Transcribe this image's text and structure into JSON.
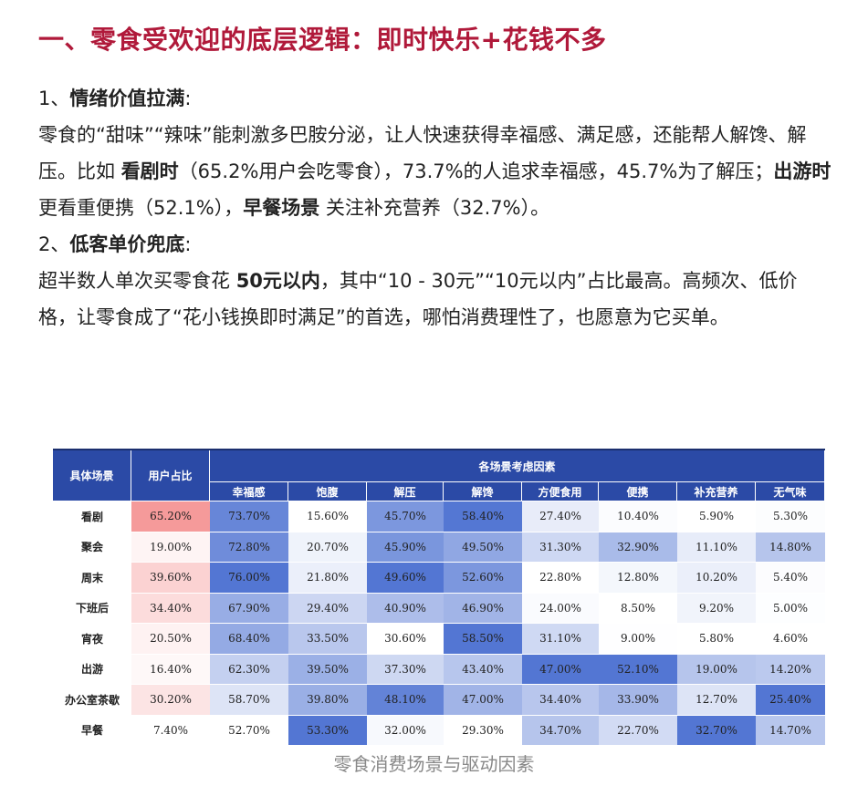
{
  "title": "一、零食受欢迎的底层逻辑：即时快乐+花钱不多",
  "sections": [
    {
      "heading_prefix": "1、",
      "heading": "情绪价值拉满",
      "heading_suffix": ":",
      "parts": [
        {
          "t": "零食的“甜味”“辣味”能刺激多巴胺分泌，让人快速获得幸福感、满足感，还能帮人解馋、解压。比如 ",
          "b": false
        },
        {
          "t": "看剧时",
          "b": true
        },
        {
          "t": "（65.2%用户会吃零食），73.7%的人追求幸福感，45.7%为了解压；",
          "b": false
        },
        {
          "t": "出游时",
          "b": true
        },
        {
          "t": " 更看重便携（52.1%），",
          "b": false
        },
        {
          "t": "早餐场景",
          "b": true
        },
        {
          "t": " 关注补充营养（32.7%）。",
          "b": false
        }
      ]
    },
    {
      "heading_prefix": "2、",
      "heading": "低客单价兜底",
      "heading_suffix": ":",
      "parts": [
        {
          "t": "超半数人单次买零食花 ",
          "b": false
        },
        {
          "t": "50元以内",
          "b": true
        },
        {
          "t": "，其中“10 - 30元”“10元以内”占比最高。高频次、低价格，让零食成了“花小钱换即时满足”的首选，哪怕消费理性了，也愿意为它买单。",
          "b": false
        }
      ]
    }
  ],
  "table": {
    "header_scene": "具体场景",
    "header_share": "用户占比",
    "header_group": "各场景考虑因素",
    "factors": [
      "幸福感",
      "饱腹",
      "解压",
      "解馋",
      "方便食用",
      "便携",
      "补充营养",
      "无气味"
    ],
    "rows": [
      {
        "scene": "看剧",
        "share": "65.20%",
        "values": [
          "73.70%",
          "15.60%",
          "45.70%",
          "58.40%",
          "27.40%",
          "10.40%",
          "5.90%",
          "5.30%"
        ]
      },
      {
        "scene": "聚会",
        "share": "19.00%",
        "values": [
          "72.80%",
          "20.70%",
          "45.90%",
          "49.50%",
          "31.30%",
          "32.90%",
          "11.10%",
          "14.80%"
        ]
      },
      {
        "scene": "周末",
        "share": "39.60%",
        "values": [
          "76.00%",
          "21.80%",
          "49.60%",
          "52.60%",
          "22.80%",
          "12.80%",
          "10.20%",
          "5.40%"
        ]
      },
      {
        "scene": "下班后",
        "share": "34.40%",
        "values": [
          "67.90%",
          "29.40%",
          "40.90%",
          "46.90%",
          "24.00%",
          "8.50%",
          "9.20%",
          "5.00%"
        ]
      },
      {
        "scene": "宵夜",
        "share": "20.50%",
        "values": [
          "68.40%",
          "33.50%",
          "30.60%",
          "58.50%",
          "31.10%",
          "9.00%",
          "5.80%",
          "4.60%"
        ]
      },
      {
        "scene": "出游",
        "share": "16.40%",
        "values": [
          "62.30%",
          "39.50%",
          "37.30%",
          "43.40%",
          "47.00%",
          "52.10%",
          "19.00%",
          "14.20%"
        ]
      },
      {
        "scene": "办公室茶歇",
        "share": "30.20%",
        "values": [
          "58.70%",
          "39.80%",
          "48.10%",
          "47.00%",
          "34.40%",
          "33.90%",
          "12.70%",
          "25.40%"
        ]
      },
      {
        "scene": "早餐",
        "share": "7.40%",
        "values": [
          "52.70%",
          "53.30%",
          "32.00%",
          "29.30%",
          "34.70%",
          "22.70%",
          "32.70%",
          "14.70%"
        ]
      }
    ],
    "colors": {
      "header_bg": "#2b4aa6",
      "cool_low": "#ffffff",
      "cool_high": "#4a6fd1",
      "warm_high": "#f59a9a"
    }
  },
  "caption": "零食消费场景与驱动因素"
}
